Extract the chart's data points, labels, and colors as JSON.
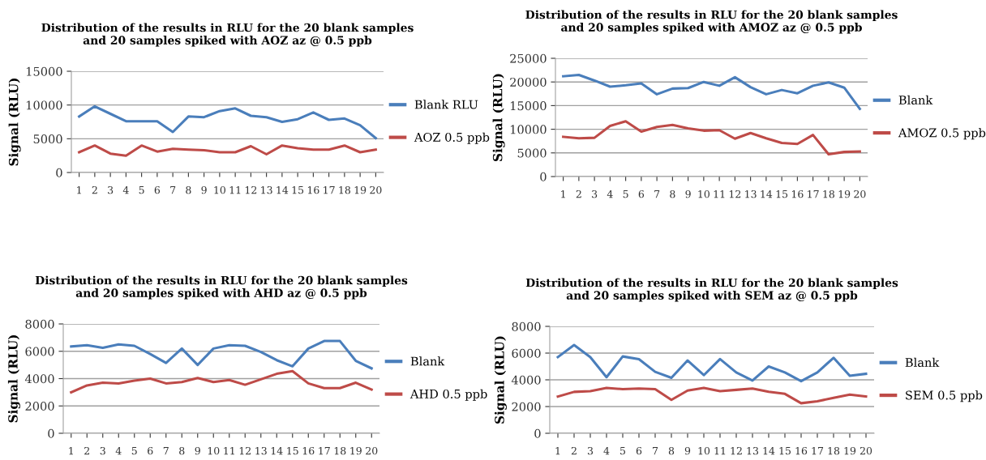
{
  "chart_data": [
    {
      "type": "line",
      "title": "Distribution of the results in RLU for the 20 blank samples\nand 20 samples spiked with AOZ az @ 0.5 ppb",
      "ylabel": "Signal (RLU)",
      "categories": [
        "1",
        "2",
        "3",
        "4",
        "5",
        "6",
        "7",
        "8",
        "9",
        "10",
        "11",
        "12",
        "13",
        "14",
        "15",
        "16",
        "17",
        "18",
        "19",
        "20"
      ],
      "ylim": [
        0,
        15000
      ],
      "yticks": [
        0,
        5000,
        10000,
        15000
      ],
      "grid": "y",
      "legend": "right",
      "series": [
        {
          "name": "Blank RLU",
          "color": "#4a7ebb",
          "values": [
            8300,
            9800,
            8700,
            7600,
            7600,
            7600,
            6000,
            8300,
            8200,
            9100,
            9500,
            8400,
            8200,
            7500,
            7900,
            8900,
            7800,
            8000,
            7000,
            5100
          ]
        },
        {
          "name": "AOZ 0.5 ppb",
          "color": "#be4b48",
          "values": [
            3000,
            4000,
            2800,
            2500,
            4000,
            3100,
            3500,
            3400,
            3300,
            3000,
            3000,
            3900,
            2700,
            4000,
            3600,
            3400,
            3400,
            4000,
            3000,
            3400
          ]
        }
      ]
    },
    {
      "type": "line",
      "title": "Distribution of the results in RLU for the 20 blank samples\nand 20 samples spiked with AMOZ az @ 0.5 ppb",
      "ylabel": "Signal (RLU)",
      "categories": [
        "1",
        "2",
        "3",
        "4",
        "5",
        "6",
        "7",
        "8",
        "9",
        "10",
        "11",
        "12",
        "13",
        "14",
        "15",
        "16",
        "17",
        "18",
        "19",
        "20"
      ],
      "ylim": [
        0,
        25000
      ],
      "yticks": [
        0,
        5000,
        10000,
        15000,
        20000,
        25000
      ],
      "grid": "y",
      "legend": "right",
      "series": [
        {
          "name": "Blank",
          "color": "#4a7ebb",
          "values": [
            21200,
            21500,
            20300,
            19000,
            19300,
            19700,
            17400,
            18600,
            18700,
            20000,
            19200,
            21000,
            18900,
            17400,
            18300,
            17600,
            19200,
            19900,
            18800,
            14300
          ]
        },
        {
          "name": "AMOZ 0.5 ppb",
          "color": "#be4b48",
          "values": [
            8400,
            8100,
            8200,
            10700,
            11700,
            9500,
            10500,
            10900,
            10200,
            9700,
            9800,
            8000,
            9200,
            8100,
            7100,
            6900,
            8800,
            4700,
            5200,
            5300
          ]
        }
      ]
    },
    {
      "type": "line",
      "title": "Distribution of the results in RLU for the 20 blank samples\nand 20 samples spiked with AHD az @ 0.5 ppb",
      "ylabel": "Signal (RLU)",
      "categories": [
        "1",
        "2",
        "3",
        "4",
        "5",
        "6",
        "7",
        "8",
        "9",
        "10",
        "11",
        "12",
        "13",
        "14",
        "15",
        "16",
        "17",
        "18",
        "19",
        "20"
      ],
      "ylim": [
        0,
        8000
      ],
      "yticks": [
        0,
        2000,
        4000,
        6000,
        8000
      ],
      "grid": "y",
      "legend": "right",
      "series": [
        {
          "name": "Blank",
          "color": "#4a7ebb",
          "values": [
            6350,
            6450,
            6250,
            6500,
            6400,
            5800,
            5150,
            6200,
            5000,
            6200,
            6450,
            6400,
            5950,
            5350,
            4900,
            6200,
            6750,
            6750,
            5300,
            4750
          ]
        },
        {
          "name": "AHD 0.5 ppb",
          "color": "#be4b48",
          "values": [
            3000,
            3500,
            3700,
            3650,
            3850,
            4000,
            3650,
            3750,
            4050,
            3750,
            3900,
            3550,
            3950,
            4350,
            4550,
            3650,
            3300,
            3300,
            3700,
            3200
          ]
        }
      ]
    },
    {
      "type": "line",
      "title": "Distribution of the results in RLU for the 20 blank samples\nand 20 samples spiked with SEM az @ 0.5 ppb",
      "ylabel": "Signal (RLU)",
      "categories": [
        "1",
        "2",
        "3",
        "4",
        "5",
        "6",
        "7",
        "8",
        "9",
        "10",
        "11",
        "12",
        "13",
        "14",
        "15",
        "16",
        "17",
        "18",
        "19",
        "20"
      ],
      "ylim": [
        0,
        8000
      ],
      "yticks": [
        0,
        2000,
        4000,
        6000,
        8000
      ],
      "grid": "y",
      "legend": "right",
      "series": [
        {
          "name": "Blank",
          "color": "#4a7ebb",
          "values": [
            5700,
            6600,
            5700,
            4200,
            5750,
            5550,
            4600,
            4150,
            5450,
            4350,
            5550,
            4550,
            3950,
            5000,
            4550,
            3900,
            4550,
            5650,
            4300,
            4450
          ]
        },
        {
          "name": "SEM 0.5 ppb",
          "color": "#be4b48",
          "values": [
            2750,
            3100,
            3150,
            3400,
            3300,
            3350,
            3300,
            2500,
            3200,
            3400,
            3150,
            3250,
            3350,
            3100,
            2950,
            2250,
            2400,
            2650,
            2900,
            2750
          ]
        }
      ]
    }
  ]
}
